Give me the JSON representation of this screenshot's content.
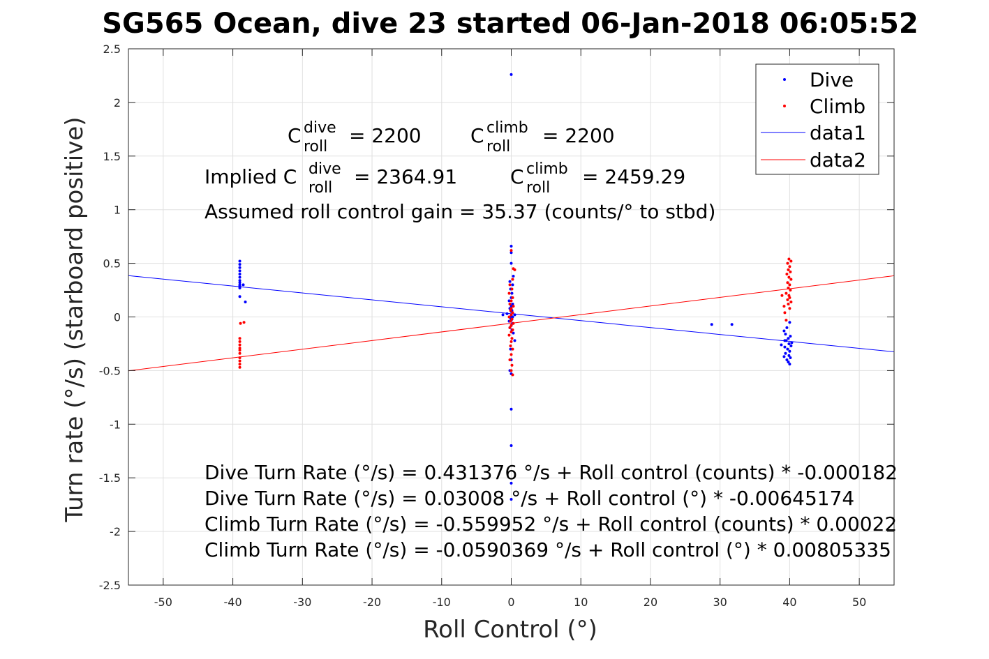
{
  "chart_data": {
    "type": "scatter",
    "title": "SG565 Ocean, dive 23 started 06-Jan-2018 06:05:52",
    "xlabel": "Roll Control (°)",
    "ylabel": "Turn rate (°/s) (starboard positive)",
    "xlim": [
      -55,
      55
    ],
    "ylim": [
      -2.5,
      2.5
    ],
    "xticks": [
      -50,
      -40,
      -30,
      -20,
      -10,
      0,
      10,
      20,
      30,
      40,
      50
    ],
    "xtick_labels": [
      "-50",
      "-40",
      "-30",
      "-20",
      "-10",
      "0",
      "10",
      "20",
      "30",
      "40",
      "50"
    ],
    "yticks": [
      -2.5,
      -2,
      -1.5,
      -1,
      -0.5,
      0,
      0.5,
      1,
      1.5,
      2,
      2.5
    ],
    "ytick_labels": [
      "-2.5",
      "-2",
      "-1.5",
      "-1",
      "-0.5",
      "0",
      "0.5",
      "1",
      "1.5",
      "2",
      "2.5"
    ],
    "grid": true,
    "legend": {
      "placement": "top-right",
      "entries": [
        "Dive",
        "Climb",
        "data1",
        "data2"
      ]
    },
    "colors": {
      "dive": "#0000ff",
      "climb": "#ff0000",
      "axis": "#262626",
      "grid": "#e0e0e0"
    },
    "series": [
      {
        "name": "Dive",
        "kind": "points",
        "color": "#0000ff",
        "points": [
          [
            -39,
            0.52
          ],
          [
            -39,
            0.49
          ],
          [
            -39,
            0.46
          ],
          [
            -39,
            0.43
          ],
          [
            -39,
            0.4
          ],
          [
            -39,
            0.37
          ],
          [
            -39,
            0.34
          ],
          [
            -39,
            0.32
          ],
          [
            -39,
            0.3
          ],
          [
            -39,
            0.29
          ],
          [
            -39,
            0.28
          ],
          [
            -39,
            0.27
          ],
          [
            -38.5,
            0.3
          ],
          [
            -39,
            0.19
          ],
          [
            -38.2,
            0.14
          ],
          [
            0,
            2.26
          ],
          [
            0,
            0.66
          ],
          [
            0,
            0.6
          ],
          [
            0,
            0.5
          ],
          [
            0.3,
            0.38
          ],
          [
            -0.2,
            0.33
          ],
          [
            0.2,
            0.3
          ],
          [
            -0.1,
            0.26
          ],
          [
            0.1,
            0.22
          ],
          [
            0,
            0.18
          ],
          [
            -0.3,
            0.15
          ],
          [
            0.2,
            0.12
          ],
          [
            0,
            0.1
          ],
          [
            -0.2,
            0.08
          ],
          [
            0.1,
            0.06
          ],
          [
            0,
            0.05
          ],
          [
            -0.6,
            0.03
          ],
          [
            -1.2,
            0.02
          ],
          [
            0.5,
            0.02
          ],
          [
            0,
            0.01
          ],
          [
            0.2,
            0
          ],
          [
            -0.1,
            -0.01
          ],
          [
            0.1,
            -0.02
          ],
          [
            0,
            -0.03
          ],
          [
            -0.3,
            -0.04
          ],
          [
            0.2,
            -0.06
          ],
          [
            0,
            -0.08
          ],
          [
            -0.2,
            -0.1
          ],
          [
            0.1,
            -0.12
          ],
          [
            0.3,
            -0.15
          ],
          [
            0.5,
            -0.22
          ],
          [
            -0.1,
            -0.3
          ],
          [
            0,
            -0.4
          ],
          [
            -0.2,
            -0.5
          ],
          [
            0,
            -0.53
          ],
          [
            0,
            -0.86
          ],
          [
            0,
            -1.2
          ],
          [
            0,
            -1.55
          ],
          [
            0,
            -1.7
          ],
          [
            28.8,
            -0.07
          ],
          [
            31.7,
            -0.07
          ],
          [
            39.2,
            -0.13
          ],
          [
            39.6,
            -0.1
          ],
          [
            40,
            -0.05
          ],
          [
            39.4,
            -0.16
          ],
          [
            39.8,
            -0.2
          ],
          [
            40.1,
            -0.18
          ],
          [
            39.5,
            -0.22
          ],
          [
            39.9,
            -0.25
          ],
          [
            40.2,
            -0.27
          ],
          [
            39.3,
            -0.28
          ],
          [
            39.7,
            -0.3
          ],
          [
            40,
            -0.32
          ],
          [
            39.4,
            -0.34
          ],
          [
            39.9,
            -0.36
          ],
          [
            40.1,
            -0.38
          ],
          [
            39.6,
            -0.4
          ],
          [
            39.8,
            -0.42
          ],
          [
            40,
            -0.44
          ],
          [
            39.2,
            -0.37
          ],
          [
            38.8,
            -0.26
          ],
          [
            39.3,
            -0.22
          ],
          [
            40.3,
            -0.24
          ]
        ]
      },
      {
        "name": "Climb",
        "kind": "points",
        "color": "#ff0000",
        "points": [
          [
            -38.4,
            -0.05
          ],
          [
            -38.9,
            -0.06
          ],
          [
            -39,
            -0.2
          ],
          [
            -39,
            -0.23
          ],
          [
            -39,
            -0.26
          ],
          [
            -39,
            -0.29
          ],
          [
            -39,
            -0.31
          ],
          [
            -39,
            -0.34
          ],
          [
            -39,
            -0.38
          ],
          [
            -39,
            -0.41
          ],
          [
            -39,
            -0.44
          ],
          [
            -39,
            -0.47
          ],
          [
            0,
            0.62
          ],
          [
            0.3,
            0.45
          ],
          [
            0.5,
            0.44
          ],
          [
            0.2,
            0.35
          ],
          [
            -0.2,
            0.3
          ],
          [
            0.1,
            0.26
          ],
          [
            -0.3,
            0.22
          ],
          [
            0.2,
            0.18
          ],
          [
            0,
            0.15
          ],
          [
            -0.2,
            0.12
          ],
          [
            0.3,
            0.1
          ],
          [
            0,
            0.08
          ],
          [
            -0.1,
            0.06
          ],
          [
            0.2,
            0.04
          ],
          [
            0,
            0.02
          ],
          [
            -0.3,
            0
          ],
          [
            0.1,
            -0.02
          ],
          [
            -0.1,
            -0.04
          ],
          [
            0.3,
            -0.06
          ],
          [
            0,
            -0.08
          ],
          [
            -0.2,
            -0.1
          ],
          [
            0.2,
            -0.12
          ],
          [
            0,
            -0.14
          ],
          [
            -0.3,
            -0.17
          ],
          [
            0.1,
            -0.2
          ],
          [
            0,
            -0.23
          ],
          [
            -0.1,
            -0.27
          ],
          [
            0.2,
            -0.3
          ],
          [
            0,
            -0.35
          ],
          [
            -0.2,
            -0.4
          ],
          [
            0.1,
            -0.45
          ],
          [
            0,
            -0.5
          ],
          [
            0.2,
            -0.54
          ],
          [
            39.9,
            0.54
          ],
          [
            40.2,
            0.52
          ],
          [
            39.7,
            0.5
          ],
          [
            40,
            0.47
          ],
          [
            39.8,
            0.44
          ],
          [
            40.1,
            0.42
          ],
          [
            39.6,
            0.4
          ],
          [
            39.9,
            0.37
          ],
          [
            40.2,
            0.35
          ],
          [
            39.7,
            0.32
          ],
          [
            40,
            0.3
          ],
          [
            39.8,
            0.27
          ],
          [
            40.1,
            0.25
          ],
          [
            39.5,
            0.22
          ],
          [
            39.9,
            0.2
          ],
          [
            40,
            0.18
          ],
          [
            39.7,
            0.16
          ],
          [
            40.2,
            0.14
          ],
          [
            39.8,
            0.12
          ],
          [
            39.2,
            0.1
          ],
          [
            38.9,
            0.2
          ],
          [
            39.3,
            0.04
          ],
          [
            39.5,
            -0.03
          ],
          [
            40,
            0.08
          ]
        ]
      },
      {
        "name": "data1",
        "kind": "line",
        "color": "#0000ff",
        "x": [
          -55,
          55
        ],
        "y": [
          0.3849,
          -0.3247
        ]
      },
      {
        "name": "data2",
        "kind": "line",
        "color": "#ff0000",
        "x": [
          -55,
          55
        ],
        "y": [
          -0.502,
          0.384
        ]
      }
    ],
    "annotations": {
      "c_roll_dive": {
        "base": "C",
        "sup": "dive",
        "sub": "roll",
        "value": "= 2200"
      },
      "c_roll_climb": {
        "base": "C",
        "sup": "climb",
        "sub": "roll",
        "value": "= 2200"
      },
      "implied_prefix": "Implied C",
      "implied_dive": {
        "sup": "dive",
        "sub": "roll",
        "value": "= 2364.91"
      },
      "implied_climb": {
        "base": "C",
        "sup": "climb",
        "sub": "roll",
        "value": "= 2459.29"
      },
      "gain": "Assumed roll control gain = 35.37 (counts/° to stbd)",
      "fits": [
        "Dive Turn Rate (°/s) = 0.431376 °/s + Roll control (counts) * -0.000182",
        "Dive Turn Rate (°/s) = 0.03008 °/s + Roll control (°) * -0.00645174",
        "Climb Turn Rate (°/s) = -0.559952 °/s + Roll control (counts) * 0.00022",
        "Climb Turn Rate (°/s) = -0.0590369 °/s + Roll control (°) * 0.00805335"
      ]
    }
  }
}
